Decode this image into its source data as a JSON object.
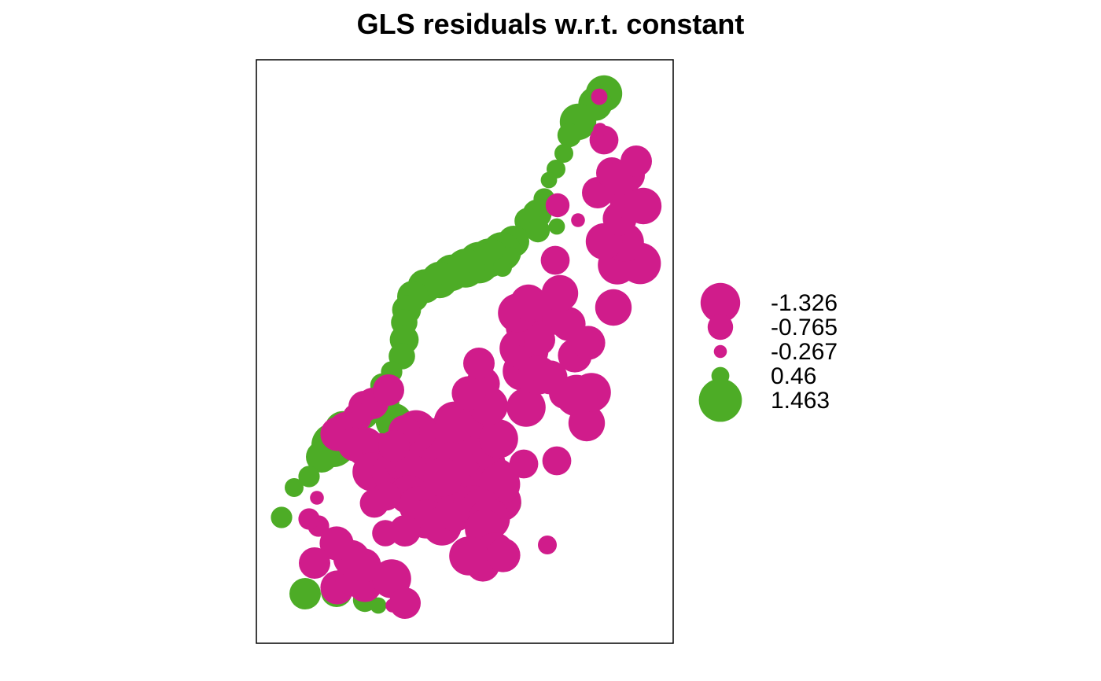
{
  "colors": {
    "negative": "#D01C8B",
    "positive": "#4DAC26",
    "frame": "#000000"
  },
  "chart_data": {
    "type": "scatter",
    "subtype": "bubble",
    "title": "GLS residuals w.r.t. constant",
    "xlabel": "",
    "ylabel": "",
    "xlim": [
      0,
      530
    ],
    "ylim": [
      0,
      742
    ],
    "axes_shown": false,
    "grid": false,
    "legend": {
      "placement": "right",
      "entries": [
        {
          "label": "-1.326",
          "value": -1.326
        },
        {
          "label": "-0.765",
          "value": -0.765
        },
        {
          "label": "-0.267",
          "value": -0.267
        },
        {
          "label": "0.46",
          "value": 0.46
        },
        {
          "label": "1.463",
          "value": 1.463
        }
      ]
    },
    "points": [
      {
        "x": 442,
        "y": 699,
        "r": 1.2
      },
      {
        "x": 431,
        "y": 686,
        "r": 1.1
      },
      {
        "x": 409,
        "y": 663,
        "r": 1.2
      },
      {
        "x": 398,
        "y": 646,
        "r": 0.7
      },
      {
        "x": 391,
        "y": 623,
        "r": 0.5
      },
      {
        "x": 381,
        "y": 603,
        "r": 0.5
      },
      {
        "x": 372,
        "y": 589,
        "r": 0.4
      },
      {
        "x": 366,
        "y": 565,
        "r": 0.6
      },
      {
        "x": 357,
        "y": 546,
        "r": 0.9
      },
      {
        "x": 345,
        "y": 537,
        "r": 0.8
      },
      {
        "x": 327,
        "y": 511,
        "r": 1.0
      },
      {
        "x": 312,
        "y": 498,
        "r": 1.3
      },
      {
        "x": 296,
        "y": 490,
        "r": 1.3
      },
      {
        "x": 283,
        "y": 484,
        "r": 1.4
      },
      {
        "x": 266,
        "y": 477,
        "r": 1.3
      },
      {
        "x": 248,
        "y": 471,
        "r": 1.2
      },
      {
        "x": 233,
        "y": 462,
        "r": 1.2
      },
      {
        "x": 214,
        "y": 454,
        "r": 1.1
      },
      {
        "x": 199,
        "y": 441,
        "r": 1.0
      },
      {
        "x": 191,
        "y": 424,
        "r": 0.9
      },
      {
        "x": 188,
        "y": 408,
        "r": 0.8
      },
      {
        "x": 188,
        "y": 386,
        "r": 0.9
      },
      {
        "x": 185,
        "y": 365,
        "r": 0.8
      },
      {
        "x": 172,
        "y": 345,
        "r": 0.6
      },
      {
        "x": 160,
        "y": 328,
        "r": 0.7
      },
      {
        "x": 148,
        "y": 306,
        "r": 0.9
      },
      {
        "x": 137,
        "y": 291,
        "r": 0.9
      },
      {
        "x": 110,
        "y": 272,
        "r": 1.2
      },
      {
        "x": 98,
        "y": 252,
        "r": 1.5
      },
      {
        "x": 83,
        "y": 237,
        "r": 1.0
      },
      {
        "x": 67,
        "y": 212,
        "r": 0.6
      },
      {
        "x": 48,
        "y": 198,
        "r": 0.5
      },
      {
        "x": 32,
        "y": 160,
        "r": 0.6
      },
      {
        "x": 62,
        "y": 63,
        "r": 1.0
      },
      {
        "x": 102,
        "y": 66,
        "r": 1.0
      },
      {
        "x": 138,
        "y": 55,
        "r": 0.7
      },
      {
        "x": 155,
        "y": 48,
        "r": 0.4
      },
      {
        "x": 112,
        "y": 131,
        "r": 0.4
      },
      {
        "x": 289,
        "y": 178,
        "r": 1.5
      },
      {
        "x": 320,
        "y": 178,
        "r": 0.8
      },
      {
        "x": 313,
        "y": 478,
        "r": 0.5
      },
      {
        "x": 323,
        "y": 493,
        "r": 0.4
      },
      {
        "x": 358,
        "y": 525,
        "r": 0.7
      },
      {
        "x": 382,
        "y": 530,
        "r": 0.4
      },
      {
        "x": 238,
        "y": 225,
        "r": 0.9
      },
      {
        "x": 175,
        "y": 282,
        "r": 1.2
      },
      {
        "x": 165,
        "y": 306,
        "r": 0.8
      },
      {
        "x": 137,
        "y": 301,
        "r": -1.0
      },
      {
        "x": 148,
        "y": 305,
        "r": -1.0
      },
      {
        "x": 128,
        "y": 287,
        "r": -0.9
      },
      {
        "x": 114,
        "y": 271,
        "r": -1.2
      },
      {
        "x": 103,
        "y": 266,
        "r": -1.1
      },
      {
        "x": 125,
        "y": 253,
        "r": -1.1
      },
      {
        "x": 138,
        "y": 250,
        "r": -1.3
      },
      {
        "x": 158,
        "y": 244,
        "r": -1.2
      },
      {
        "x": 147,
        "y": 218,
        "r": -1.3
      },
      {
        "x": 168,
        "y": 217,
        "r": -1.1
      },
      {
        "x": 189,
        "y": 232,
        "r": -1.4
      },
      {
        "x": 214,
        "y": 200,
        "r": -1.6
      },
      {
        "x": 201,
        "y": 222,
        "r": -1.3
      },
      {
        "x": 230,
        "y": 206,
        "r": -1.4
      },
      {
        "x": 248,
        "y": 206,
        "r": -1.3
      },
      {
        "x": 256,
        "y": 222,
        "r": -1.1
      },
      {
        "x": 272,
        "y": 219,
        "r": -1.1
      },
      {
        "x": 292,
        "y": 228,
        "r": -1.3
      },
      {
        "x": 305,
        "y": 209,
        "r": -1.4
      },
      {
        "x": 312,
        "y": 180,
        "r": -1.3
      },
      {
        "x": 309,
        "y": 202,
        "r": -1.4
      },
      {
        "x": 291,
        "y": 253,
        "r": -1.4
      },
      {
        "x": 287,
        "y": 275,
        "r": -1.3
      },
      {
        "x": 263,
        "y": 262,
        "r": -1.3
      },
      {
        "x": 252,
        "y": 281,
        "r": -1.4
      },
      {
        "x": 221,
        "y": 260,
        "r": -1.4
      },
      {
        "x": 203,
        "y": 270,
        "r": -1.4
      },
      {
        "x": 188,
        "y": 270,
        "r": -1.0
      },
      {
        "x": 168,
        "y": 322,
        "r": -1.0
      },
      {
        "x": 175,
        "y": 251,
        "r": -1.0
      },
      {
        "x": 194,
        "y": 189,
        "r": -1.3
      },
      {
        "x": 206,
        "y": 175,
        "r": -1.3
      },
      {
        "x": 216,
        "y": 158,
        "r": -1.3
      },
      {
        "x": 236,
        "y": 149,
        "r": -1.3
      },
      {
        "x": 253,
        "y": 167,
        "r": -1.3
      },
      {
        "x": 275,
        "y": 176,
        "r": -1.3
      },
      {
        "x": 248,
        "y": 228,
        "r": -1.5
      },
      {
        "x": 237,
        "y": 211,
        "r": -1.3
      },
      {
        "x": 286,
        "y": 170,
        "r": -1.4
      },
      {
        "x": 296,
        "y": 158,
        "r": -1.4
      },
      {
        "x": 290,
        "y": 145,
        "r": -1.3
      },
      {
        "x": 303,
        "y": 116,
        "r": -1.3
      },
      {
        "x": 288,
        "y": 100,
        "r": -1.1
      },
      {
        "x": 270,
        "y": 111,
        "r": -1.3
      },
      {
        "x": 314,
        "y": 112,
        "r": -1.1
      },
      {
        "x": 283,
        "y": 285,
        "r": -1.3
      },
      {
        "x": 308,
        "y": 260,
        "r": -1.3
      },
      {
        "x": 295,
        "y": 302,
        "r": -1.3
      },
      {
        "x": 288,
        "y": 330,
        "r": -1.1
      },
      {
        "x": 270,
        "y": 318,
        "r": -1.1
      },
      {
        "x": 283,
        "y": 356,
        "r": -1.0
      },
      {
        "x": 338,
        "y": 346,
        "r": -1.3
      },
      {
        "x": 334,
        "y": 375,
        "r": -1.3
      },
      {
        "x": 343,
        "y": 300,
        "r": -1.3
      },
      {
        "x": 345,
        "y": 372,
        "r": -1.4
      },
      {
        "x": 358,
        "y": 341,
        "r": -1.3
      },
      {
        "x": 342,
        "y": 402,
        "r": -1.3
      },
      {
        "x": 332,
        "y": 420,
        "r": -1.3
      },
      {
        "x": 346,
        "y": 433,
        "r": -1.2
      },
      {
        "x": 365,
        "y": 428,
        "r": -1.0
      },
      {
        "x": 383,
        "y": 412,
        "r": -1.0
      },
      {
        "x": 360,
        "y": 386,
        "r": -1.0
      },
      {
        "x": 374,
        "y": 338,
        "r": -1.1
      },
      {
        "x": 392,
        "y": 318,
        "r": -1.0
      },
      {
        "x": 420,
        "y": 280,
        "r": -1.2
      },
      {
        "x": 426,
        "y": 319,
        "r": -1.3
      },
      {
        "x": 407,
        "y": 315,
        "r": -1.4
      },
      {
        "x": 405,
        "y": 366,
        "r": -1.1
      },
      {
        "x": 422,
        "y": 382,
        "r": -1.1
      },
      {
        "x": 397,
        "y": 406,
        "r": -1.1
      },
      {
        "x": 386,
        "y": 445,
        "r": -1.2
      },
      {
        "x": 454,
        "y": 427,
        "r": -1.2
      },
      {
        "x": 459,
        "y": 481,
        "r": -1.3
      },
      {
        "x": 488,
        "y": 483,
        "r": -1.4
      },
      {
        "x": 468,
        "y": 510,
        "r": -1.3
      },
      {
        "x": 442,
        "y": 511,
        "r": -1.2
      },
      {
        "x": 462,
        "y": 540,
        "r": -1.1
      },
      {
        "x": 471,
        "y": 562,
        "r": -1.1
      },
      {
        "x": 434,
        "y": 573,
        "r": -1.0
      },
      {
        "x": 452,
        "y": 598,
        "r": -1.0
      },
      {
        "x": 474,
        "y": 595,
        "r": -1.0
      },
      {
        "x": 492,
        "y": 556,
        "r": -1.2
      },
      {
        "x": 462,
        "y": 591,
        "r": -1.1
      },
      {
        "x": 483,
        "y": 613,
        "r": -1.0
      },
      {
        "x": 442,
        "y": 640,
        "r": -0.9
      },
      {
        "x": 437,
        "y": 653,
        "r": -0.3
      },
      {
        "x": 409,
        "y": 538,
        "r": -0.3
      },
      {
        "x": 370,
        "y": 125,
        "r": -0.5
      },
      {
        "x": 383,
        "y": 557,
        "r": -0.7
      },
      {
        "x": 380,
        "y": 487,
        "r": -0.9
      },
      {
        "x": 340,
        "y": 228,
        "r": -0.9
      },
      {
        "x": 382,
        "y": 232,
        "r": -0.9
      },
      {
        "x": 436,
        "y": 695,
        "r": -0.4
      },
      {
        "x": 79,
        "y": 149,
        "r": -0.6
      },
      {
        "x": 67,
        "y": 158,
        "r": -0.6
      },
      {
        "x": 77,
        "y": 185,
        "r": -0.3
      },
      {
        "x": 173,
        "y": 48,
        "r": -0.3
      },
      {
        "x": 103,
        "y": 71,
        "r": -1.1
      },
      {
        "x": 120,
        "y": 82,
        "r": -1.0
      },
      {
        "x": 138,
        "y": 74,
        "r": -1.1
      },
      {
        "x": 172,
        "y": 82,
        "r": -1.3
      },
      {
        "x": 189,
        "y": 51,
        "r": -1.0
      },
      {
        "x": 121,
        "y": 108,
        "r": -1.2
      },
      {
        "x": 137,
        "y": 99,
        "r": -1.1
      },
      {
        "x": 102,
        "y": 127,
        "r": -1.1
      },
      {
        "x": 189,
        "y": 143,
        "r": -1.0
      },
      {
        "x": 165,
        "y": 187,
        "r": -0.9
      },
      {
        "x": 150,
        "y": 178,
        "r": -0.9
      },
      {
        "x": 164,
        "y": 140,
        "r": -0.8
      },
      {
        "x": 74,
        "y": 102,
        "r": -1.0
      }
    ]
  }
}
